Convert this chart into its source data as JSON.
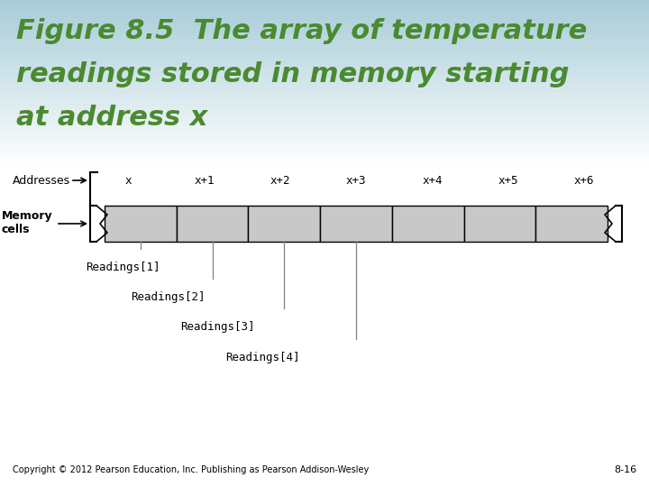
{
  "title_line1": "Figure 8.5  The array of temperature",
  "title_line2": "readings stored in memory starting",
  "title_line3": "at address x",
  "title_color": "#4a8a30",
  "bg_color_top": "#a8ccd8",
  "bg_color_bottom": "#ffffff",
  "addresses": [
    "x",
    "x+1",
    "x+2",
    "x+3",
    "x+4",
    "x+5",
    "x+6"
  ],
  "cell_color": "#c8c8c8",
  "cell_border": "#000000",
  "readings": [
    "Readings[1]",
    "Readings[2]",
    "Readings[3]",
    "Readings[4]"
  ],
  "footer": "Copyright © 2012 Pearson Education, Inc. Publishing as Pearson Addison-Wesley",
  "page_num": "8-16"
}
